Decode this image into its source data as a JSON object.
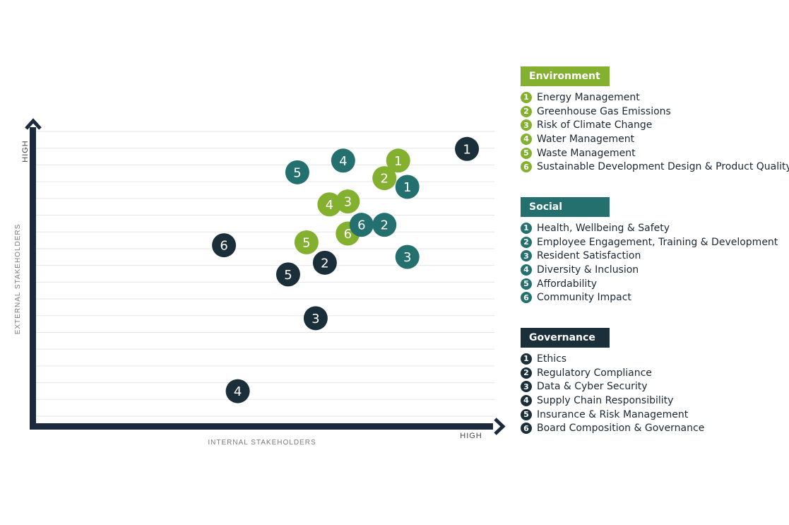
{
  "chart_data": {
    "type": "scatter",
    "title": "",
    "xlabel": "INTERNAL STAKEHOLDERS",
    "ylabel": "EXTERNAL STAKEHOLDERS",
    "x_high_label": "HIGH",
    "y_high_label": "HIGH",
    "xlim": [
      0,
      100
    ],
    "ylim": [
      0,
      100
    ],
    "grid": true,
    "legend_position": "right",
    "series": [
      {
        "name": "Environment",
        "color": "#84b02f",
        "items": [
          "Energy Management",
          "Greenhouse Gas Emissions",
          "Risk of Climate Change",
          "Water Management",
          "Waste Management",
          "Sustainable Development Design & Product Quality"
        ],
        "points": [
          {
            "label": "1",
            "x": 79,
            "y": 90
          },
          {
            "label": "2",
            "x": 76,
            "y": 84
          },
          {
            "label": "3",
            "x": 68,
            "y": 76
          },
          {
            "label": "4",
            "x": 64,
            "y": 75
          },
          {
            "label": "5",
            "x": 59,
            "y": 62
          },
          {
            "label": "6",
            "x": 68,
            "y": 65
          }
        ]
      },
      {
        "name": "Social",
        "color": "#23706e",
        "items": [
          "Health, Wellbeing & Safety",
          "Employee Engagement, Training & Development",
          "Resident Satisfaction",
          "Diversity & Inclusion",
          "Affordability",
          "Community Impact"
        ],
        "points": [
          {
            "label": "1",
            "x": 81,
            "y": 81
          },
          {
            "label": "2",
            "x": 76,
            "y": 68
          },
          {
            "label": "3",
            "x": 81,
            "y": 57
          },
          {
            "label": "4",
            "x": 67,
            "y": 90
          },
          {
            "label": "5",
            "x": 57,
            "y": 86
          },
          {
            "label": "6",
            "x": 71,
            "y": 68
          }
        ]
      },
      {
        "name": "Governance",
        "color": "#1b2f3a",
        "items": [
          "Ethics",
          "Regulatory Compliance",
          "Data & Cyber Security",
          "Supply Chain Responsibility",
          "Insurance & Risk Management",
          "Board Composition & Governance"
        ],
        "points": [
          {
            "label": "1",
            "x": 94,
            "y": 94
          },
          {
            "label": "2",
            "x": 63,
            "y": 55
          },
          {
            "label": "3",
            "x": 61,
            "y": 36
          },
          {
            "label": "4",
            "x": 44,
            "y": 11
          },
          {
            "label": "5",
            "x": 55,
            "y": 51
          },
          {
            "label": "6",
            "x": 41,
            "y": 61
          }
        ]
      }
    ]
  }
}
